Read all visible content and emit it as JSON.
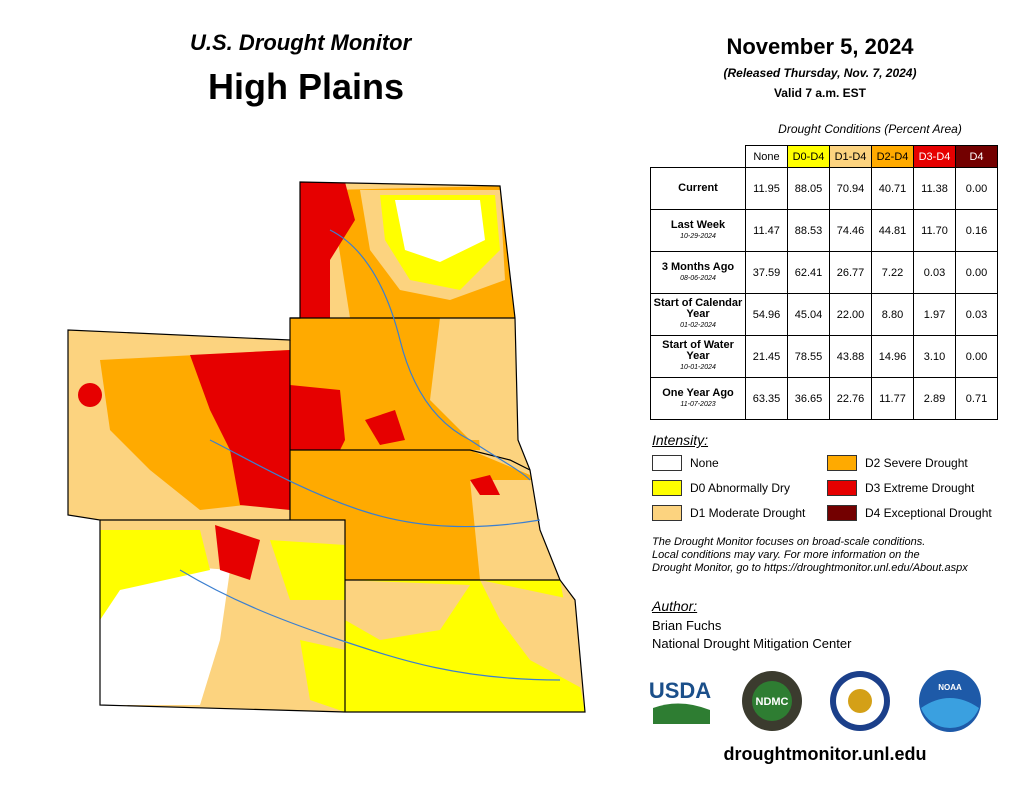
{
  "header": {
    "title": "U.S. Drought Monitor",
    "region": "High Plains",
    "date": "November 5, 2024",
    "released": "(Released Thursday, Nov. 7, 2024)",
    "valid": "Valid 7 a.m. EST"
  },
  "table": {
    "caption": "Drought Conditions (Percent Area)",
    "columns": [
      "None",
      "D0-D4",
      "D1-D4",
      "D2-D4",
      "D3-D4",
      "D4"
    ],
    "rows": [
      {
        "label": "Current",
        "values": [
          "11.95",
          "88.05",
          "70.94",
          "40.71",
          "11.38",
          "0.00"
        ]
      },
      {
        "label": "Last Week",
        "date": "10-29-2024",
        "values": [
          "11.47",
          "88.53",
          "74.46",
          "44.81",
          "11.70",
          "0.16"
        ]
      },
      {
        "label": "3 Months Ago",
        "date": "08-06-2024",
        "values": [
          "37.59",
          "62.41",
          "26.77",
          "7.22",
          "0.03",
          "0.00"
        ]
      },
      {
        "label": "Start of Calendar Year",
        "date": "01-02-2024",
        "values": [
          "54.96",
          "45.04",
          "22.00",
          "8.80",
          "1.97",
          "0.03"
        ]
      },
      {
        "label": "Start of Water Year",
        "date": "10-01-2024",
        "values": [
          "21.45",
          "78.55",
          "43.88",
          "14.96",
          "3.10",
          "0.00"
        ]
      },
      {
        "label": "One Year Ago",
        "date": "11-07-2023",
        "values": [
          "63.35",
          "36.65",
          "22.76",
          "11.77",
          "2.89",
          "0.71"
        ]
      }
    ]
  },
  "legend": {
    "title": "Intensity:",
    "items": [
      "None",
      "D2 Severe Drought",
      "D0 Abnormally Dry",
      "D3 Extreme Drought",
      "D1 Moderate Drought",
      "D4 Exceptional Drought"
    ]
  },
  "note": [
    "The Drought Monitor focuses on broad-scale conditions.",
    "Local conditions may vary. For more information on the",
    "Drought Monitor, go to https://droughtmonitor.unl.edu/About.aspx"
  ],
  "author": {
    "label": "Author:",
    "name": "Brian Fuchs",
    "organization": "National Drought Mitigation Center"
  },
  "logos": [
    "USDA",
    "NDMC",
    "NOAA"
  ],
  "footer": {
    "url": "droughtmonitor.unl.edu"
  }
}
